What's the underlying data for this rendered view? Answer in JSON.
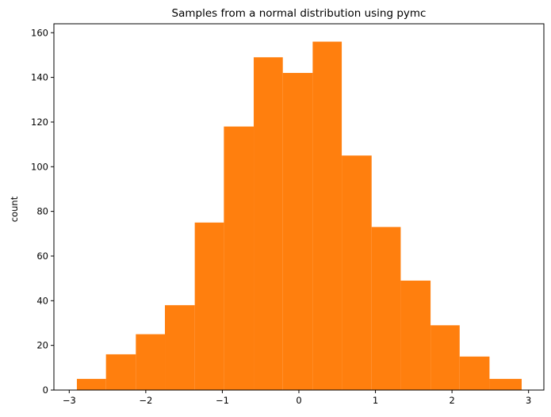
{
  "chart_data": {
    "type": "bar",
    "title": "Samples from a normal distribution using pymc",
    "xlabel": "",
    "ylabel": "count",
    "bar_color": "#ff7f0e",
    "bins": [
      {
        "x0": -2.9,
        "x1": -2.52,
        "count": 5
      },
      {
        "x0": -2.52,
        "x1": -2.13,
        "count": 16
      },
      {
        "x0": -2.13,
        "x1": -1.75,
        "count": 25
      },
      {
        "x0": -1.75,
        "x1": -1.36,
        "count": 38
      },
      {
        "x0": -1.36,
        "x1": -0.98,
        "count": 75
      },
      {
        "x0": -0.98,
        "x1": -0.59,
        "count": 118
      },
      {
        "x0": -0.59,
        "x1": -0.21,
        "count": 149
      },
      {
        "x0": -0.21,
        "x1": 0.18,
        "count": 142
      },
      {
        "x0": 0.18,
        "x1": 0.56,
        "count": 156
      },
      {
        "x0": 0.56,
        "x1": 0.95,
        "count": 105
      },
      {
        "x0": 0.95,
        "x1": 1.33,
        "count": 73
      },
      {
        "x0": 1.33,
        "x1": 1.72,
        "count": 49
      },
      {
        "x0": 1.72,
        "x1": 2.1,
        "count": 29
      },
      {
        "x0": 2.1,
        "x1": 2.49,
        "count": 15
      },
      {
        "x0": 2.49,
        "x1": 2.91,
        "count": 5
      }
    ],
    "xlim": [
      -3.2,
      3.2
    ],
    "ylim": [
      0,
      164
    ],
    "xticks": [
      -3,
      -2,
      -1,
      0,
      1,
      2,
      3
    ],
    "xtick_labels": [
      "−3",
      "−2",
      "−1",
      "0",
      "1",
      "2",
      "3"
    ],
    "yticks": [
      0,
      20,
      40,
      60,
      80,
      100,
      120,
      140,
      160
    ],
    "ytick_labels": [
      "0",
      "20",
      "40",
      "60",
      "80",
      "100",
      "120",
      "140",
      "160"
    ],
    "grid": false,
    "legend": false
  }
}
